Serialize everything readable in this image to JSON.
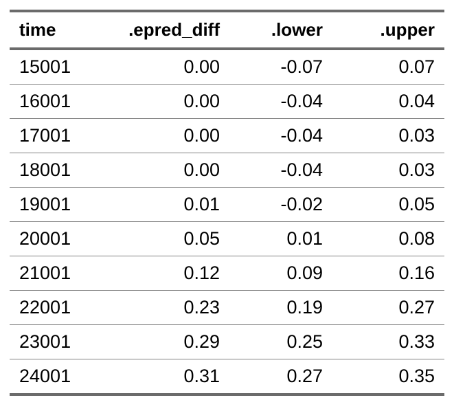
{
  "table": {
    "headers": [
      "time",
      ".epred_diff",
      ".lower",
      ".upper"
    ],
    "rows": [
      [
        "15001",
        "0.00",
        "-0.07",
        "0.07"
      ],
      [
        "16001",
        "0.00",
        "-0.04",
        "0.04"
      ],
      [
        "17001",
        "0.00",
        "-0.04",
        "0.03"
      ],
      [
        "18001",
        "0.00",
        "-0.04",
        "0.03"
      ],
      [
        "19001",
        "0.01",
        "-0.02",
        "0.05"
      ],
      [
        "20001",
        "0.05",
        "0.01",
        "0.08"
      ],
      [
        "21001",
        "0.12",
        "0.09",
        "0.16"
      ],
      [
        "22001",
        "0.23",
        "0.19",
        "0.27"
      ],
      [
        "23001",
        "0.29",
        "0.25",
        "0.33"
      ],
      [
        "24001",
        "0.31",
        "0.27",
        "0.35"
      ]
    ]
  }
}
